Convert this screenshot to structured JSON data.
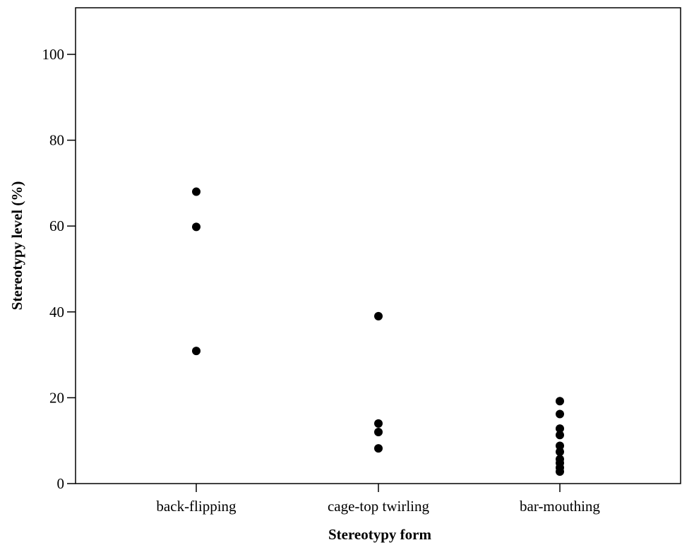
{
  "chart_data": {
    "type": "scatter",
    "title": "",
    "xlabel": "Stereotypy form",
    "ylabel": "Stereotypy level (%)",
    "categories": [
      "back-flipping",
      "cage-top twirling",
      "bar-mouthing"
    ],
    "yticks": [
      "0",
      "20",
      "40",
      "60",
      "80",
      "100"
    ],
    "ylim": [
      0,
      110
    ],
    "grid": false,
    "points": [
      {
        "category": "back-flipping",
        "y": 68
      },
      {
        "category": "back-flipping",
        "y": 59.8
      },
      {
        "category": "back-flipping",
        "y": 30.9
      },
      {
        "category": "cage-top twirling",
        "y": 39
      },
      {
        "category": "cage-top twirling",
        "y": 14
      },
      {
        "category": "cage-top twirling",
        "y": 12
      },
      {
        "category": "cage-top twirling",
        "y": 8.2
      },
      {
        "category": "bar-mouthing",
        "y": 19.2
      },
      {
        "category": "bar-mouthing",
        "y": 16.2
      },
      {
        "category": "bar-mouthing",
        "y": 12.8
      },
      {
        "category": "bar-mouthing",
        "y": 11.3
      },
      {
        "category": "bar-mouthing",
        "y": 8.8
      },
      {
        "category": "bar-mouthing",
        "y": 7.4
      },
      {
        "category": "bar-mouthing",
        "y": 5.7
      },
      {
        "category": "bar-mouthing",
        "y": 4.8
      },
      {
        "category": "bar-mouthing",
        "y": 3.7
      },
      {
        "category": "bar-mouthing",
        "y": 2.8
      }
    ],
    "marker_color": "#000000"
  }
}
